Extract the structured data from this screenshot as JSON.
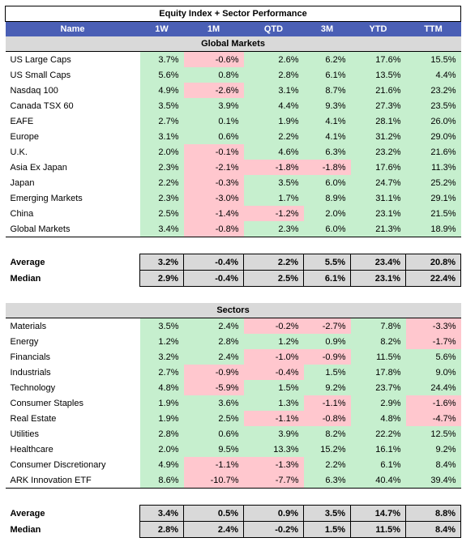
{
  "title": "Equity Index + Sector Performance",
  "columns": [
    "Name",
    "1W",
    "1M",
    "QTD",
    "3M",
    "YTD",
    "TTM"
  ],
  "colors": {
    "header_bg": "#4a5fb5",
    "positive_bg": "#c6efce",
    "negative_bg": "#ffc7ce",
    "section_bg": "#d9d9d9"
  },
  "global": {
    "label": "Global Markets",
    "rows": [
      {
        "name": "US Large Caps",
        "values": [
          "3.7%",
          "-0.6%",
          "2.6%",
          "6.2%",
          "17.6%",
          "15.5%"
        ]
      },
      {
        "name": "US Small Caps",
        "values": [
          "5.6%",
          "0.8%",
          "2.8%",
          "6.1%",
          "13.5%",
          "4.4%"
        ]
      },
      {
        "name": "Nasdaq 100",
        "values": [
          "4.9%",
          "-2.6%",
          "3.1%",
          "8.7%",
          "21.6%",
          "23.2%"
        ]
      },
      {
        "name": "Canada TSX 60",
        "values": [
          "3.5%",
          "3.9%",
          "4.4%",
          "9.3%",
          "27.3%",
          "23.5%"
        ]
      },
      {
        "name": "EAFE",
        "values": [
          "2.7%",
          "0.1%",
          "1.9%",
          "4.1%",
          "28.1%",
          "26.0%"
        ]
      },
      {
        "name": "Europe",
        "values": [
          "3.1%",
          "0.6%",
          "2.2%",
          "4.1%",
          "31.2%",
          "29.0%"
        ]
      },
      {
        "name": "U.K.",
        "values": [
          "2.0%",
          "-0.1%",
          "4.6%",
          "6.3%",
          "23.2%",
          "21.6%"
        ]
      },
      {
        "name": "Asia Ex Japan",
        "values": [
          "2.3%",
          "-2.1%",
          "-1.8%",
          "-1.8%",
          "17.6%",
          "11.3%"
        ]
      },
      {
        "name": "Japan",
        "values": [
          "2.2%",
          "-0.3%",
          "3.5%",
          "6.0%",
          "24.7%",
          "25.2%"
        ]
      },
      {
        "name": "Emerging Markets",
        "values": [
          "2.3%",
          "-3.0%",
          "1.7%",
          "8.9%",
          "31.1%",
          "29.1%"
        ]
      },
      {
        "name": "China",
        "values": [
          "2.5%",
          "-1.4%",
          "-1.2%",
          "2.0%",
          "23.1%",
          "21.5%"
        ]
      },
      {
        "name": "Global Markets",
        "values": [
          "3.4%",
          "-0.8%",
          "2.3%",
          "6.0%",
          "21.3%",
          "18.9%"
        ]
      }
    ],
    "average": {
      "name": "Average",
      "values": [
        "3.2%",
        "-0.4%",
        "2.2%",
        "5.5%",
        "23.4%",
        "20.8%"
      ]
    },
    "median": {
      "name": "Median",
      "values": [
        "2.9%",
        "-0.4%",
        "2.5%",
        "6.1%",
        "23.1%",
        "22.4%"
      ]
    }
  },
  "sectors": {
    "label": "Sectors",
    "rows": [
      {
        "name": "Materials",
        "values": [
          "3.5%",
          "2.4%",
          "-0.2%",
          "-2.7%",
          "7.8%",
          "-3.3%"
        ]
      },
      {
        "name": "Energy",
        "values": [
          "1.2%",
          "2.8%",
          "1.2%",
          "0.9%",
          "8.2%",
          "-1.7%"
        ]
      },
      {
        "name": "Financials",
        "values": [
          "3.2%",
          "2.4%",
          "-1.0%",
          "-0.9%",
          "11.5%",
          "5.6%"
        ]
      },
      {
        "name": "Industrials",
        "values": [
          "2.7%",
          "-0.9%",
          "-0.4%",
          "1.5%",
          "17.8%",
          "9.0%"
        ]
      },
      {
        "name": "Technology",
        "values": [
          "4.8%",
          "-5.9%",
          "1.5%",
          "9.2%",
          "23.7%",
          "24.4%"
        ]
      },
      {
        "name": "Consumer Staples",
        "values": [
          "1.9%",
          "3.6%",
          "1.3%",
          "-1.1%",
          "2.9%",
          "-1.6%"
        ]
      },
      {
        "name": "Real Estate",
        "values": [
          "1.9%",
          "2.5%",
          "-1.1%",
          "-0.8%",
          "4.8%",
          "-4.7%"
        ]
      },
      {
        "name": "Utilities",
        "values": [
          "2.8%",
          "0.6%",
          "3.9%",
          "8.2%",
          "22.2%",
          "12.5%"
        ]
      },
      {
        "name": "Healthcare",
        "values": [
          "2.0%",
          "9.5%",
          "13.3%",
          "15.2%",
          "16.1%",
          "9.2%"
        ]
      },
      {
        "name": "Consumer Discretionary",
        "values": [
          "4.9%",
          "-1.1%",
          "-1.3%",
          "2.2%",
          "6.1%",
          "8.4%"
        ]
      },
      {
        "name": "ARK Innovation ETF",
        "values": [
          "8.6%",
          "-10.7%",
          "-7.7%",
          "6.3%",
          "40.4%",
          "39.4%"
        ]
      }
    ],
    "average": {
      "name": "Average",
      "values": [
        "3.4%",
        "0.5%",
        "0.9%",
        "3.5%",
        "14.7%",
        "8.8%"
      ]
    },
    "median": {
      "name": "Median",
      "values": [
        "2.8%",
        "2.4%",
        "-0.2%",
        "1.5%",
        "11.5%",
        "8.4%"
      ]
    }
  }
}
